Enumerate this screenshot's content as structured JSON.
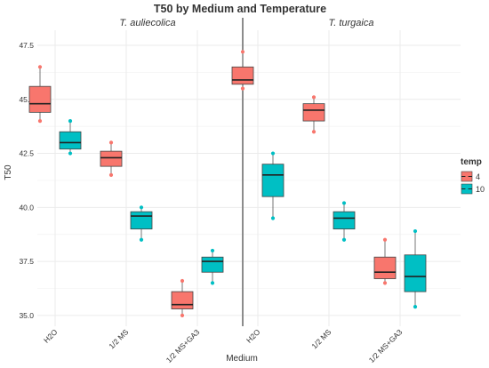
{
  "chart_data": {
    "type": "box",
    "title": "T50 by Medium and Temperature",
    "xlabel": "Medium",
    "ylabel": "T50",
    "ylim": [
      34.5,
      48.2
    ],
    "yticks": [
      "35.0",
      "37.5",
      "40.0",
      "42.5",
      "45.0",
      "47.5"
    ],
    "categories": [
      "H2O",
      "1/2 MS",
      "1/2 MS+GA3"
    ],
    "legend": {
      "title": "temp",
      "position": "right",
      "entries": [
        {
          "label": "4",
          "color": "#F8766D"
        },
        {
          "label": "10",
          "color": "#00BFC4"
        }
      ]
    },
    "grid": true,
    "panels": [
      {
        "title": "T. auliecolica",
        "series": [
          {
            "temp": "4",
            "boxes": [
              {
                "category": "H2O",
                "min": 44.0,
                "q1": 44.4,
                "median": 44.8,
                "q3": 45.6,
                "max": 46.5,
                "points": [
                  44.0,
                  46.5
                ]
              },
              {
                "category": "1/2 MS",
                "min": 41.5,
                "q1": 41.9,
                "median": 42.3,
                "q3": 42.6,
                "max": 43.0,
                "points": [
                  41.5,
                  43.0
                ]
              },
              {
                "category": "1/2 MS+GA3",
                "min": 35.0,
                "q1": 35.3,
                "median": 35.5,
                "q3": 36.1,
                "max": 36.6,
                "points": [
                  35.0,
                  36.6
                ]
              }
            ]
          },
          {
            "temp": "10",
            "boxes": [
              {
                "category": "H2O",
                "min": 42.5,
                "q1": 42.7,
                "median": 43.0,
                "q3": 43.5,
                "max": 44.0,
                "points": [
                  42.5,
                  44.0
                ]
              },
              {
                "category": "1/2 MS",
                "min": 38.5,
                "q1": 39.0,
                "median": 39.6,
                "q3": 39.8,
                "max": 40.0,
                "points": [
                  38.5,
                  40.0
                ]
              },
              {
                "category": "1/2 MS+GA3",
                "min": 36.5,
                "q1": 37.0,
                "median": 37.5,
                "q3": 37.7,
                "max": 38.0,
                "points": [
                  36.5,
                  38.0
                ]
              }
            ]
          }
        ]
      },
      {
        "title": "T. turgaica",
        "series": [
          {
            "temp": "4",
            "boxes": [
              {
                "category": "H2O",
                "min": 45.5,
                "q1": 45.7,
                "median": 45.9,
                "q3": 46.5,
                "max": 47.2,
                "points": [
                  45.5,
                  47.2
                ]
              },
              {
                "category": "1/2 MS",
                "min": 43.5,
                "q1": 44.0,
                "median": 44.5,
                "q3": 44.8,
                "max": 45.1,
                "points": [
                  43.5,
                  45.1
                ]
              },
              {
                "category": "1/2 MS+GA3",
                "min": 36.5,
                "q1": 36.7,
                "median": 37.0,
                "q3": 37.7,
                "max": 38.5,
                "points": [
                  36.5,
                  38.5
                ]
              }
            ]
          },
          {
            "temp": "10",
            "boxes": [
              {
                "category": "H2O",
                "min": 39.5,
                "q1": 40.5,
                "median": 41.5,
                "q3": 42.0,
                "max": 42.5,
                "points": [
                  39.5,
                  42.5
                ]
              },
              {
                "category": "1/2 MS",
                "min": 38.5,
                "q1": 39.0,
                "median": 39.5,
                "q3": 39.8,
                "max": 40.2,
                "points": [
                  38.5,
                  40.2
                ]
              },
              {
                "category": "1/2 MS+GA3",
                "min": 35.4,
                "q1": 36.1,
                "median": 36.8,
                "q3": 37.8,
                "max": 38.9,
                "points": [
                  35.4,
                  38.9
                ]
              }
            ]
          }
        ]
      }
    ]
  }
}
